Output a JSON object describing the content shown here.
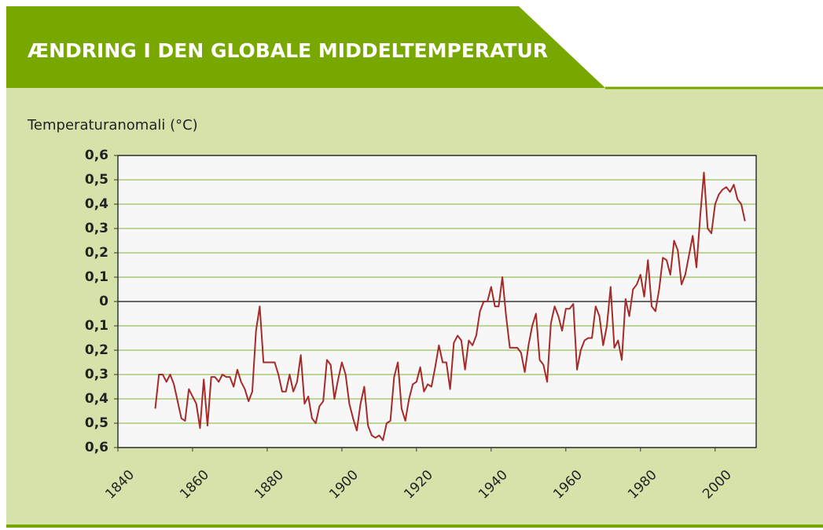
{
  "chart_data": {
    "type": "line",
    "title": "ÆNDRING I DEN GLOBALE MIDDELTEMPERATUR",
    "y_label": "Temperaturanomali (°C)",
    "x": [
      1850,
      1851,
      1852,
      1853,
      1854,
      1855,
      1856,
      1857,
      1858,
      1859,
      1860,
      1861,
      1862,
      1863,
      1864,
      1865,
      1866,
      1867,
      1868,
      1869,
      1870,
      1871,
      1872,
      1873,
      1874,
      1875,
      1876,
      1877,
      1878,
      1879,
      1880,
      1881,
      1882,
      1883,
      1884,
      1885,
      1886,
      1887,
      1888,
      1889,
      1890,
      1891,
      1892,
      1893,
      1894,
      1895,
      1896,
      1897,
      1898,
      1899,
      1900,
      1901,
      1902,
      1903,
      1904,
      1905,
      1906,
      1907,
      1908,
      1909,
      1910,
      1911,
      1912,
      1913,
      1914,
      1915,
      1916,
      1917,
      1918,
      1919,
      1920,
      1921,
      1922,
      1923,
      1924,
      1925,
      1926,
      1927,
      1928,
      1929,
      1930,
      1931,
      1932,
      1933,
      1934,
      1935,
      1936,
      1937,
      1938,
      1939,
      1940,
      1941,
      1942,
      1943,
      1944,
      1945,
      1946,
      1947,
      1948,
      1949,
      1950,
      1951,
      1952,
      1953,
      1954,
      1955,
      1956,
      1957,
      1958,
      1959,
      1960,
      1961,
      1962,
      1963,
      1964,
      1965,
      1966,
      1967,
      1968,
      1969,
      1970,
      1971,
      1972,
      1973,
      1974,
      1975,
      1976,
      1977,
      1978,
      1979,
      1980,
      1981,
      1982,
      1983,
      1984,
      1985,
      1986,
      1987,
      1988,
      1989,
      1990,
      1991,
      1992,
      1993,
      1994,
      1995,
      1996,
      1997,
      1998,
      1999,
      2000,
      2001,
      2002,
      2003,
      2004,
      2005,
      2006,
      2007,
      2008
    ],
    "series": [
      {
        "color": "#a52a2a",
        "values": [
          -0.44,
          -0.3,
          -0.3,
          -0.33,
          -0.3,
          -0.34,
          -0.41,
          -0.48,
          -0.49,
          -0.36,
          -0.39,
          -0.42,
          -0.52,
          -0.32,
          -0.51,
          -0.31,
          -0.31,
          -0.33,
          -0.3,
          -0.31,
          -0.31,
          -0.35,
          -0.28,
          -0.33,
          -0.36,
          -0.41,
          -0.37,
          -0.12,
          -0.02,
          -0.25,
          -0.25,
          -0.25,
          -0.25,
          -0.3,
          -0.37,
          -0.37,
          -0.3,
          -0.37,
          -0.33,
          -0.22,
          -0.42,
          -0.39,
          -0.48,
          -0.5,
          -0.43,
          -0.41,
          -0.24,
          -0.26,
          -0.4,
          -0.32,
          -0.25,
          -0.3,
          -0.42,
          -0.48,
          -0.53,
          -0.42,
          -0.35,
          -0.51,
          -0.55,
          -0.56,
          -0.55,
          -0.57,
          -0.5,
          -0.49,
          -0.31,
          -0.25,
          -0.44,
          -0.49,
          -0.4,
          -0.34,
          -0.33,
          -0.27,
          -0.37,
          -0.34,
          -0.35,
          -0.27,
          -0.18,
          -0.25,
          -0.25,
          -0.36,
          -0.17,
          -0.14,
          -0.16,
          -0.28,
          -0.16,
          -0.18,
          -0.14,
          -0.04,
          0.0,
          0.0,
          0.06,
          -0.02,
          -0.02,
          0.1,
          -0.06,
          -0.19,
          -0.19,
          -0.19,
          -0.21,
          -0.29,
          -0.18,
          -0.1,
          -0.05,
          -0.24,
          -0.26,
          -0.33,
          -0.09,
          -0.02,
          -0.06,
          -0.12,
          -0.03,
          -0.03,
          -0.01,
          -0.28,
          -0.2,
          -0.16,
          -0.15,
          -0.15,
          -0.02,
          -0.06,
          -0.18,
          -0.1,
          0.06,
          -0.19,
          -0.16,
          -0.24,
          0.01,
          -0.06,
          0.05,
          0.07,
          0.11,
          0.02,
          0.17,
          -0.02,
          -0.04,
          0.05,
          0.18,
          0.17,
          0.11,
          0.25,
          0.21,
          0.07,
          0.11,
          0.19,
          0.27,
          0.14,
          0.35,
          0.53,
          0.3,
          0.28,
          0.4,
          0.44,
          0.46,
          0.47,
          0.45,
          0.48,
          0.42,
          0.4,
          0.33
        ]
      }
    ],
    "xlim": [
      1840,
      2011
    ],
    "xticks": [
      1840,
      1860,
      1880,
      1900,
      1920,
      1940,
      1960,
      1980,
      2000
    ],
    "ylim": [
      -0.6,
      0.6
    ],
    "yticks": [
      {
        "value": -0.6,
        "label": "0,6"
      },
      {
        "value": -0.5,
        "label": "0,5"
      },
      {
        "value": -0.4,
        "label": "0,4"
      },
      {
        "value": -0.3,
        "label": "0,3"
      },
      {
        "value": -0.2,
        "label": "0,2"
      },
      {
        "value": -0.1,
        "label": "0,1"
      },
      0,
      {
        "value": 0.1,
        "label": "0,1"
      },
      {
        "value": 0.2,
        "label": "0,2"
      },
      {
        "value": 0.3,
        "label": "0,3"
      },
      {
        "value": 0.4,
        "label": "0,4"
      },
      {
        "value": 0.5,
        "label": "0,5"
      },
      {
        "value": 0.6,
        "label": "0,6"
      }
    ],
    "grid": true
  }
}
